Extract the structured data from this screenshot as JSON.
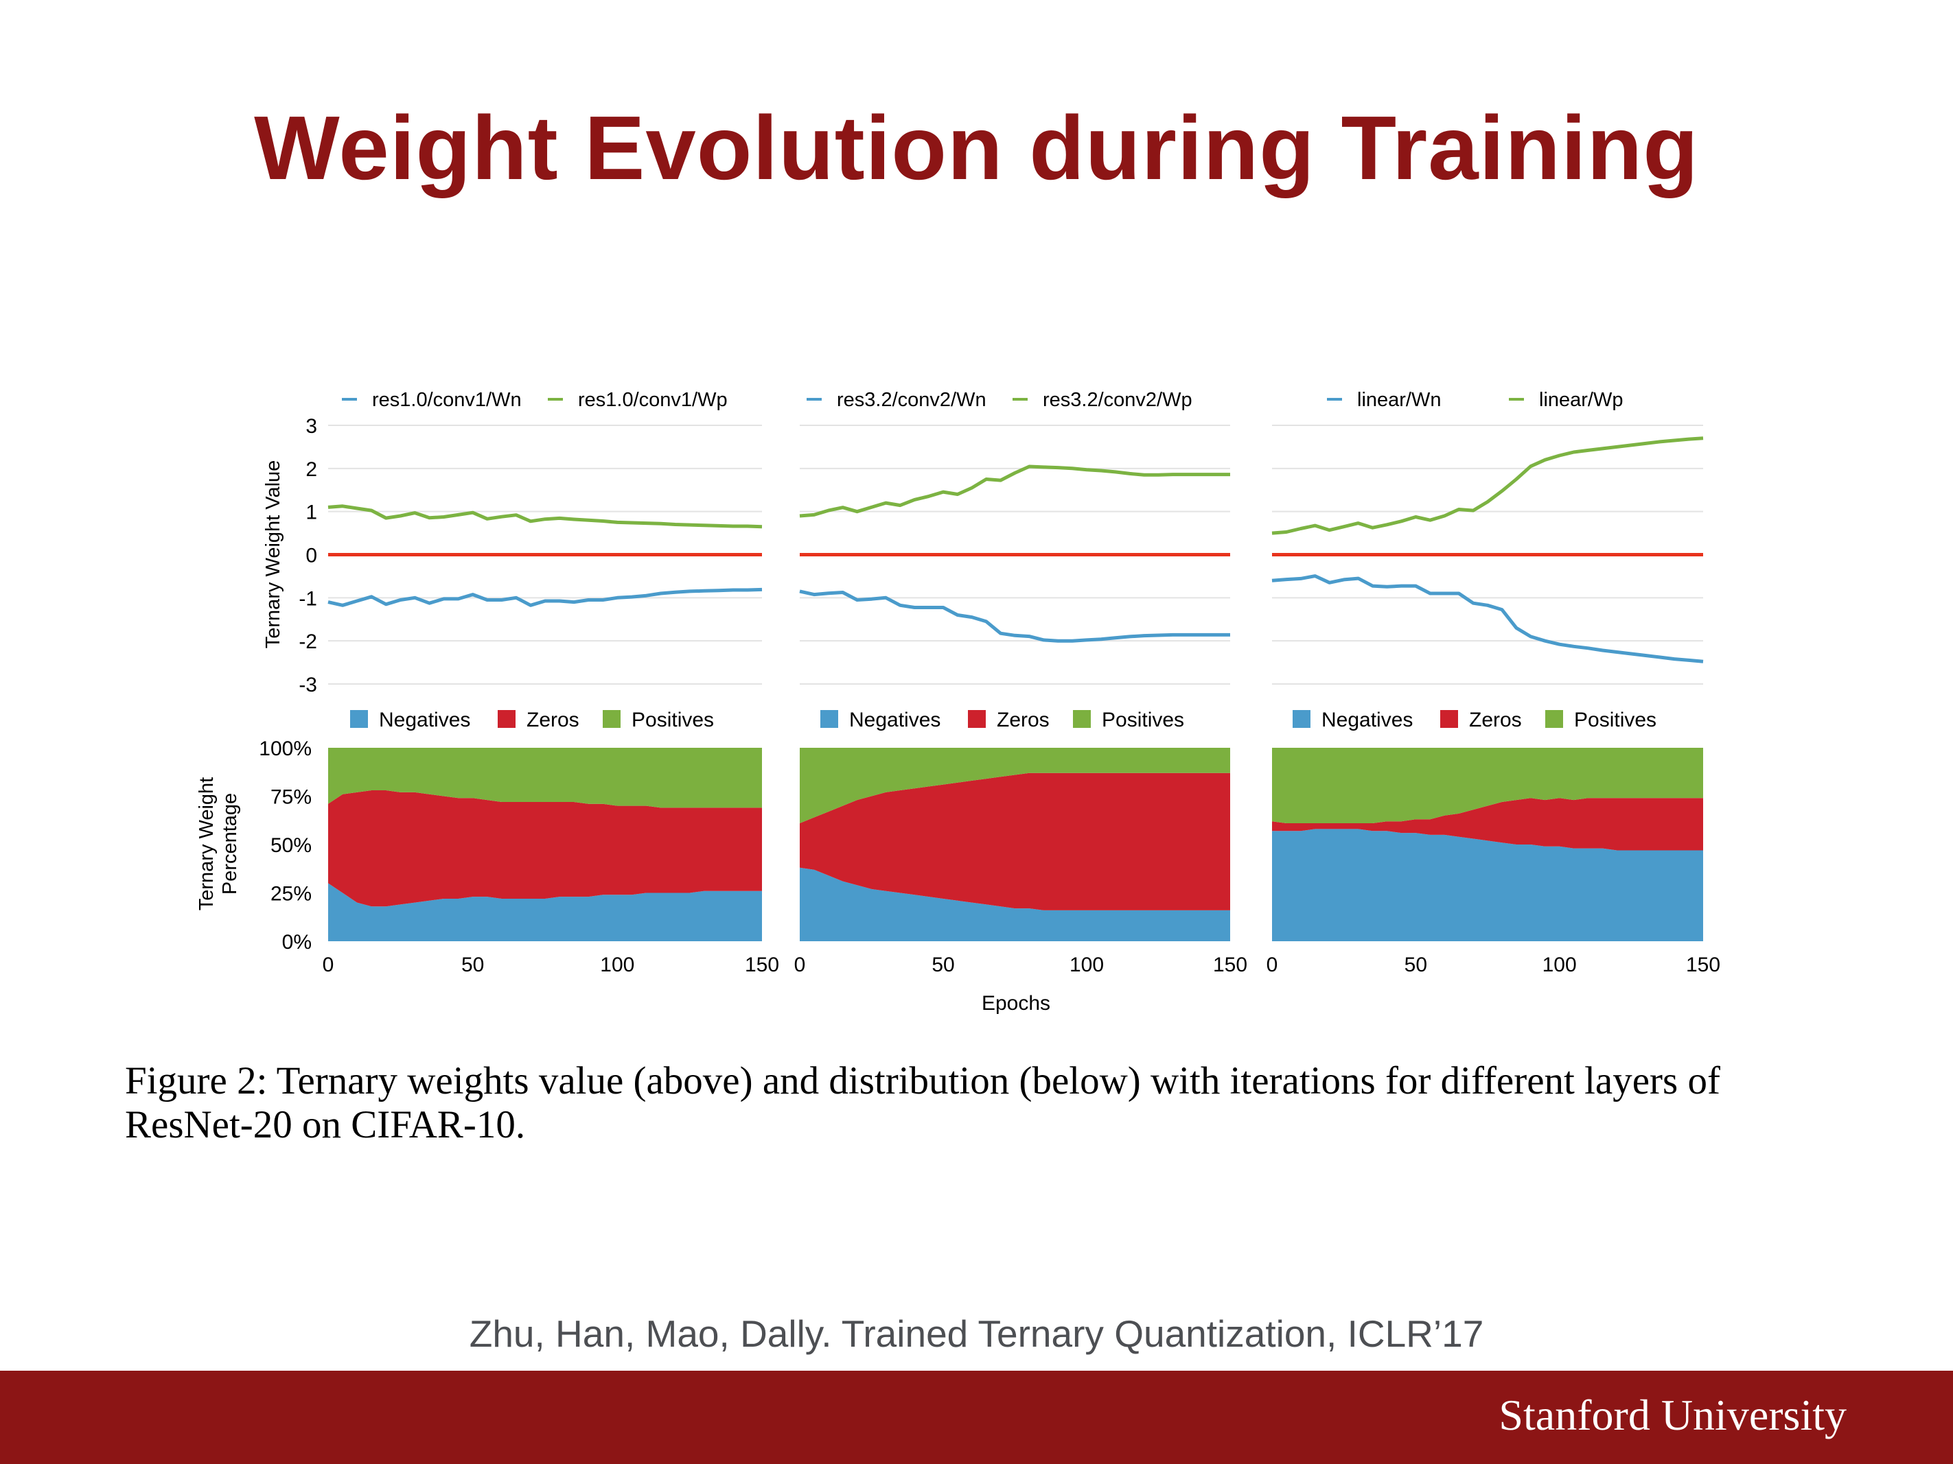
{
  "slide": {
    "title": "Weight Evolution during Training",
    "caption": "Figure 2: Ternary weights value (above) and distribution (below) with iterations for different layers of ResNet-20 on CIFAR-10.",
    "citation": "Zhu, Han, Mao, Dally. Trained Ternary Quantization, ICLR’17",
    "footer_logo": "Stanford University",
    "colors": {
      "title": "#8c1515",
      "footer": "#8c1515",
      "citation": "#4d4f53"
    }
  },
  "figure": {
    "top_ylabel": "Ternary Weight Value",
    "bottom_ylabel_line1": "Ternary Weight",
    "bottom_ylabel_line2": "Percentage",
    "xlabel": "Epochs",
    "colors": {
      "wn": "#4a9bcb",
      "wp": "#7cb342",
      "zero_line": "#e8331c",
      "negatives": "#4a9bcb",
      "zeros": "#cd212c",
      "positives": "#7cb03f"
    }
  },
  "chart_data": [
    {
      "type": "line",
      "panel": "top-left",
      "x": [
        0,
        5,
        10,
        15,
        20,
        25,
        30,
        35,
        40,
        45,
        50,
        55,
        60,
        65,
        70,
        75,
        80,
        85,
        90,
        95,
        100,
        105,
        110,
        115,
        120,
        125,
        130,
        135,
        140,
        145,
        150
      ],
      "series": [
        {
          "name": "res1.0/conv1/Wn",
          "values": [
            -1.1,
            -1.15,
            -1.1,
            -1.05,
            -1.1,
            -1.05,
            -1.05,
            -1.05,
            -1.0,
            -1.05,
            -1.0,
            -1.0,
            -1.05,
            -1.05,
            -1.1,
            -1.05,
            -1.1,
            -1.1,
            -1.05,
            -1.05,
            -1.0,
            -0.98,
            -0.95,
            -0.9,
            -0.87,
            -0.85,
            -0.84,
            -0.83,
            -0.82,
            -0.82,
            -0.81
          ]
        },
        {
          "name": "res1.0/conv1/Wp",
          "values": [
            1.1,
            1.15,
            1.05,
            0.95,
            0.9,
            0.9,
            0.92,
            0.93,
            0.9,
            0.9,
            0.9,
            0.88,
            0.88,
            0.87,
            0.85,
            0.85,
            0.82,
            0.82,
            0.8,
            0.78,
            0.75,
            0.74,
            0.73,
            0.72,
            0.7,
            0.69,
            0.68,
            0.67,
            0.66,
            0.66,
            0.65
          ]
        },
        {
          "name": "zero",
          "values": [
            0,
            0,
            0,
            0,
            0,
            0,
            0,
            0,
            0,
            0,
            0,
            0,
            0,
            0,
            0,
            0,
            0,
            0,
            0,
            0,
            0,
            0,
            0,
            0,
            0,
            0,
            0,
            0,
            0,
            0,
            0
          ]
        }
      ],
      "legend": [
        "res1.0/conv1/Wn",
        "res1.0/conv1/Wp"
      ],
      "ylabel": "Ternary Weight Value",
      "ylim": [
        -3,
        3
      ],
      "yticks": [
        -3,
        -2,
        -1,
        0,
        1,
        2,
        3
      ],
      "grid": true,
      "legend_position": "top"
    },
    {
      "type": "line",
      "panel": "top-middle",
      "x": [
        0,
        5,
        10,
        15,
        20,
        25,
        30,
        35,
        40,
        45,
        50,
        55,
        60,
        65,
        70,
        75,
        80,
        85,
        90,
        95,
        100,
        105,
        110,
        115,
        120,
        125,
        130,
        135,
        140,
        145,
        150
      ],
      "series": [
        {
          "name": "res3.2/conv2/Wn",
          "values": [
            -0.85,
            -0.9,
            -0.92,
            -0.95,
            -1.0,
            -1.03,
            -1.05,
            -1.1,
            -1.2,
            -1.25,
            -1.3,
            -1.35,
            -1.45,
            -1.6,
            -1.75,
            -1.85,
            -1.92,
            -1.98,
            -2.0,
            -2.0,
            -1.98,
            -1.96,
            -1.93,
            -1.9,
            -1.88,
            -1.87,
            -1.86,
            -1.86,
            -1.86,
            -1.86,
            -1.86
          ]
        },
        {
          "name": "res3.2/conv2/Wp",
          "values": [
            0.9,
            0.95,
            1.0,
            1.02,
            1.05,
            1.1,
            1.15,
            1.22,
            1.3,
            1.33,
            1.38,
            1.45,
            1.55,
            1.7,
            1.8,
            1.92,
            2.02,
            2.03,
            2.02,
            2.0,
            1.97,
            1.95,
            1.92,
            1.88,
            1.85,
            1.85,
            1.86,
            1.86,
            1.86,
            1.86,
            1.86
          ]
        },
        {
          "name": "zero",
          "values": [
            0,
            0,
            0,
            0,
            0,
            0,
            0,
            0,
            0,
            0,
            0,
            0,
            0,
            0,
            0,
            0,
            0,
            0,
            0,
            0,
            0,
            0,
            0,
            0,
            0,
            0,
            0,
            0,
            0,
            0,
            0
          ]
        }
      ],
      "legend": [
        "res3.2/conv2/Wn",
        "res3.2/conv2/Wp"
      ],
      "ylim": [
        -3,
        3
      ],
      "grid": true,
      "legend_position": "top"
    },
    {
      "type": "line",
      "panel": "top-right",
      "x": [
        0,
        5,
        10,
        15,
        20,
        25,
        30,
        35,
        40,
        45,
        50,
        55,
        60,
        65,
        70,
        75,
        80,
        85,
        90,
        95,
        100,
        105,
        110,
        115,
        120,
        125,
        130,
        135,
        140,
        145,
        150
      ],
      "series": [
        {
          "name": "linear/Wn",
          "values": [
            -0.6,
            -0.55,
            -0.58,
            -0.57,
            -0.6,
            -0.58,
            -0.6,
            -0.65,
            -0.72,
            -0.75,
            -0.8,
            -0.85,
            -0.9,
            -0.95,
            -1.05,
            -1.15,
            -1.3,
            -1.7,
            -1.9,
            -2.0,
            -2.08,
            -2.13,
            -2.17,
            -2.22,
            -2.26,
            -2.3,
            -2.34,
            -2.38,
            -2.42,
            -2.45,
            -2.48
          ]
        },
        {
          "name": "linear/Wp",
          "values": [
            0.5,
            0.55,
            0.58,
            0.6,
            0.62,
            0.65,
            0.68,
            0.7,
            0.72,
            0.75,
            0.8,
            0.85,
            0.9,
            1.0,
            1.1,
            1.25,
            1.45,
            1.75,
            2.05,
            2.2,
            2.3,
            2.38,
            2.42,
            2.46,
            2.5,
            2.54,
            2.58,
            2.62,
            2.65,
            2.68,
            2.7
          ]
        },
        {
          "name": "zero",
          "values": [
            0,
            0,
            0,
            0,
            0,
            0,
            0,
            0,
            0,
            0,
            0,
            0,
            0,
            0,
            0,
            0,
            0,
            0,
            0,
            0,
            0,
            0,
            0,
            0,
            0,
            0,
            0,
            0,
            0,
            0,
            0
          ]
        }
      ],
      "legend": [
        "linear/Wn",
        "linear/Wp"
      ],
      "ylim": [
        -3,
        3
      ],
      "grid": true,
      "legend_position": "top"
    },
    {
      "type": "area",
      "stacked": true,
      "panel": "bottom-left",
      "x": [
        0,
        5,
        10,
        15,
        20,
        25,
        30,
        35,
        40,
        45,
        50,
        55,
        60,
        65,
        70,
        75,
        80,
        85,
        90,
        95,
        100,
        105,
        110,
        115,
        120,
        125,
        130,
        135,
        140,
        145,
        150
      ],
      "series": [
        {
          "name": "Negatives",
          "values": [
            30,
            25,
            20,
            18,
            18,
            19,
            20,
            21,
            22,
            22,
            23,
            23,
            22,
            22,
            22,
            22,
            23,
            23,
            23,
            24,
            24,
            24,
            25,
            25,
            25,
            25,
            26,
            26,
            26,
            26,
            26
          ]
        },
        {
          "name": "Zeros",
          "values": [
            41,
            51,
            57,
            60,
            60,
            58,
            57,
            55,
            53,
            52,
            51,
            50,
            50,
            50,
            50,
            50,
            49,
            49,
            48,
            47,
            46,
            46,
            45,
            44,
            44,
            44,
            43,
            43,
            43,
            43,
            43
          ]
        },
        {
          "name": "Positives",
          "values": [
            29,
            24,
            23,
            22,
            22,
            23,
            23,
            24,
            25,
            26,
            26,
            27,
            28,
            28,
            28,
            28,
            28,
            28,
            29,
            29,
            30,
            30,
            30,
            31,
            31,
            31,
            31,
            31,
            31,
            31,
            31
          ]
        }
      ],
      "ylabel": "Ternary Weight Percentage",
      "xlabel": "Epochs",
      "ylim": [
        0,
        100
      ],
      "yticks": [
        "0%",
        "25%",
        "50%",
        "75%",
        "100%"
      ],
      "xticks": [
        0,
        50,
        100,
        150
      ],
      "legend_position": "top"
    },
    {
      "type": "area",
      "stacked": true,
      "panel": "bottom-middle",
      "x": [
        0,
        5,
        10,
        15,
        20,
        25,
        30,
        35,
        40,
        45,
        50,
        55,
        60,
        65,
        70,
        75,
        80,
        85,
        90,
        95,
        100,
        105,
        110,
        115,
        120,
        125,
        130,
        135,
        140,
        145,
        150
      ],
      "series": [
        {
          "name": "Negatives",
          "values": [
            38,
            37,
            34,
            31,
            29,
            27,
            26,
            25,
            24,
            23,
            22,
            21,
            20,
            19,
            18,
            17,
            17,
            16,
            16,
            16,
            16,
            16,
            16,
            16,
            16,
            16,
            16,
            16,
            16,
            16,
            16
          ]
        },
        {
          "name": "Zeros",
          "values": [
            23,
            27,
            33,
            39,
            44,
            48,
            51,
            53,
            55,
            57,
            59,
            61,
            63,
            65,
            67,
            69,
            70,
            71,
            71,
            71,
            71,
            71,
            71,
            71,
            71,
            71,
            71,
            71,
            71,
            71,
            71
          ]
        },
        {
          "name": "Positives",
          "values": [
            39,
            36,
            33,
            30,
            27,
            25,
            23,
            22,
            21,
            20,
            19,
            18,
            17,
            16,
            15,
            14,
            13,
            13,
            13,
            13,
            13,
            13,
            13,
            13,
            13,
            13,
            13,
            13,
            13,
            13,
            13
          ]
        }
      ],
      "xticks": [
        0,
        50,
        100,
        150
      ],
      "ylim": [
        0,
        100
      ],
      "legend_position": "top"
    },
    {
      "type": "area",
      "stacked": true,
      "panel": "bottom-right",
      "x": [
        0,
        5,
        10,
        15,
        20,
        25,
        30,
        35,
        40,
        45,
        50,
        55,
        60,
        65,
        70,
        75,
        80,
        85,
        90,
        95,
        100,
        105,
        110,
        115,
        120,
        125,
        130,
        135,
        140,
        145,
        150
      ],
      "series": [
        {
          "name": "Negatives",
          "values": [
            57,
            57,
            57,
            58,
            58,
            58,
            58,
            57,
            57,
            56,
            56,
            55,
            55,
            54,
            53,
            52,
            51,
            50,
            50,
            49,
            49,
            48,
            48,
            48,
            47,
            47,
            47,
            47,
            47,
            47,
            47
          ]
        },
        {
          "name": "Zeros",
          "values": [
            5,
            4,
            4,
            3,
            3,
            3,
            3,
            4,
            5,
            6,
            7,
            8,
            10,
            12,
            15,
            18,
            21,
            23,
            24,
            24,
            25,
            25,
            26,
            26,
            27,
            27,
            27,
            27,
            27,
            27,
            27
          ]
        },
        {
          "name": "Positives",
          "values": [
            38,
            39,
            39,
            39,
            39,
            39,
            39,
            39,
            38,
            38,
            37,
            37,
            35,
            34,
            32,
            30,
            28,
            27,
            26,
            27,
            26,
            27,
            26,
            26,
            26,
            26,
            26,
            26,
            26,
            26,
            26
          ]
        }
      ],
      "xticks": [
        0,
        50,
        100,
        150
      ],
      "ylim": [
        0,
        100
      ],
      "legend_position": "top"
    }
  ]
}
